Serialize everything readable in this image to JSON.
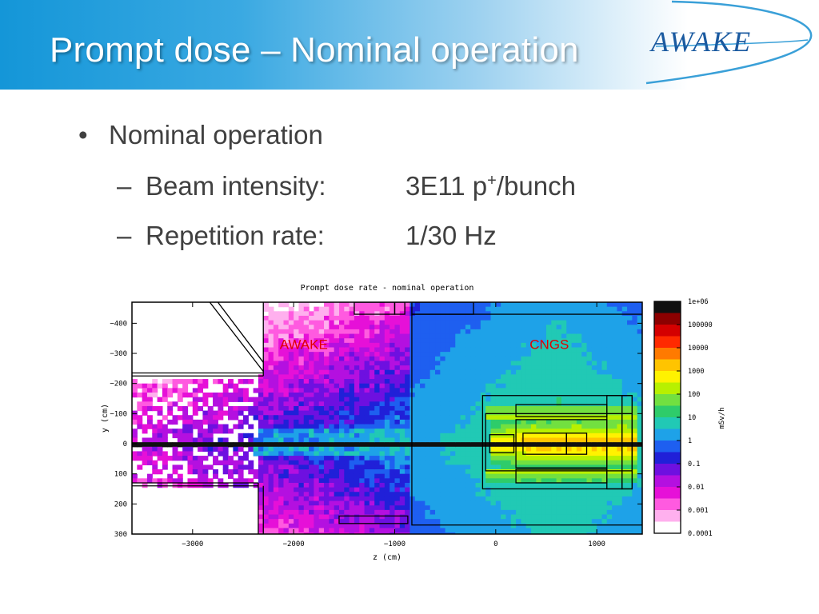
{
  "slide": {
    "title": "Prompt dose – Nominal operation",
    "logo_text": "AWAKE",
    "bullet": "Nominal operation",
    "items": [
      {
        "label": "Beam intensity:",
        "value": "3E11 p",
        "value_sup": "+",
        "value_suffix": "/bunch"
      },
      {
        "label": "Repetition rate:",
        "value": "1/30 Hz",
        "value_sup": "",
        "value_suffix": ""
      }
    ]
  },
  "chart_data": {
    "type": "heatmap",
    "title": "Prompt dose rate - nominal operation",
    "xlabel": "z (cm)",
    "ylabel": "y (cm)",
    "xlim": [
      -3600,
      1450
    ],
    "ylim": [
      -470,
      300
    ],
    "y_inverted": true,
    "x_ticks": [
      -3000,
      -2000,
      -1000,
      0,
      1000
    ],
    "y_ticks": [
      -400,
      -300,
      -200,
      -100,
      0,
      100,
      200,
      300
    ],
    "colorbar": {
      "label": "mSv/h",
      "scale": "log",
      "ticks": [
        "1e+06",
        "100000",
        "10000",
        "1000",
        "100",
        "10",
        "1",
        "0.1",
        "0.01",
        "0.001",
        "0.0001"
      ],
      "colors": [
        "#101010",
        "#8c0000",
        "#d40000",
        "#ff2a00",
        "#ff7a00",
        "#ffc400",
        "#fff200",
        "#b8f000",
        "#72e040",
        "#2ecc6a",
        "#21c9b5",
        "#1ea2e8",
        "#1e5ff0",
        "#2020d8",
        "#6e10e0",
        "#b410e0",
        "#e610d8",
        "#ff5ae0",
        "#ffb0ee",
        "#ffffff"
      ]
    },
    "annotations": [
      {
        "text": "AWAKE",
        "x": -1900,
        "y": -315,
        "color": "#e00000"
      },
      {
        "text": "CNGS",
        "x": 530,
        "y": -315,
        "color": "#e00000"
      }
    ]
  }
}
